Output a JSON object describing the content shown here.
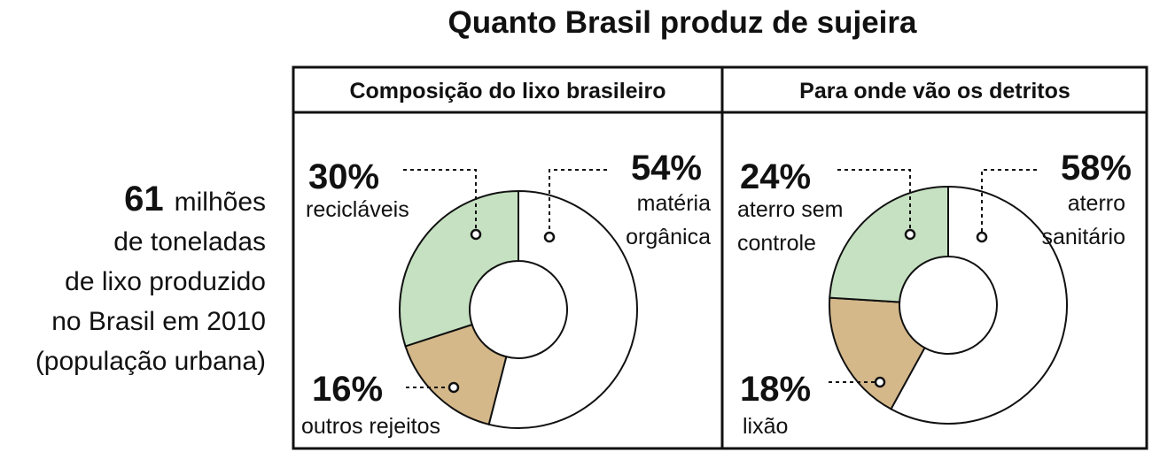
{
  "title": "Quanto Brasil produz de sujeira",
  "side_note": {
    "number": "61",
    "lines": [
      "milhões",
      "de toneladas",
      "de lixo produzido",
      "no Brasil em 2010",
      "(população urbana)"
    ]
  },
  "chart_data": [
    {
      "type": "donut",
      "title": "Composição do lixo brasileiro",
      "categories": [
        "matéria\norgânica",
        "outros rejeitos",
        "recicláveis"
      ],
      "values": [
        54,
        16,
        30
      ],
      "value_labels": [
        "54%",
        "16%",
        "30%"
      ],
      "colors": [
        "#ffffff",
        "#d4b88a",
        "#c6e1c2"
      ]
    },
    {
      "type": "donut",
      "title": "Para onde vão os detritos",
      "categories": [
        "aterro\nsanitário",
        "lixão",
        "aterro sem\ncontrole"
      ],
      "values": [
        58,
        18,
        24
      ],
      "value_labels": [
        "58%",
        "18%",
        "24%"
      ],
      "colors": [
        "#ffffff",
        "#d4b88a",
        "#c6e1c2"
      ]
    }
  ]
}
